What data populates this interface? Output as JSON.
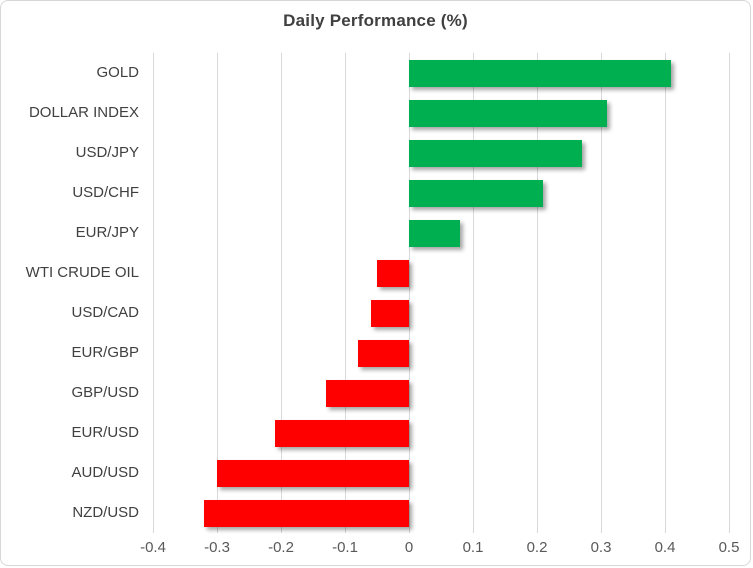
{
  "chart_data": {
    "type": "bar",
    "orientation": "horizontal",
    "title": "Daily Performance (%)",
    "categories": [
      "GOLD",
      "DOLLAR INDEX",
      "USD/JPY",
      "USD/CHF",
      "EUR/JPY",
      "WTI CRUDE OIL",
      "USD/CAD",
      "EUR/GBP",
      "GBP/USD",
      "EUR/USD",
      "AUD/USD",
      "NZD/USD"
    ],
    "values": [
      0.41,
      0.31,
      0.27,
      0.21,
      0.08,
      -0.05,
      -0.06,
      -0.08,
      -0.13,
      -0.21,
      -0.3,
      -0.32
    ],
    "xlim": [
      -0.4,
      0.5
    ],
    "xticks": [
      -0.4,
      -0.3,
      -0.2,
      -0.1,
      0,
      0.1,
      0.2,
      0.3,
      0.4,
      0.5
    ],
    "xtick_labels": [
      "-0.4",
      "-0.3",
      "-0.2",
      "-0.1",
      "0",
      "0.1",
      "0.2",
      "0.3",
      "0.4",
      "0.5"
    ],
    "grid": "vertical-on",
    "legend": "none",
    "colors": {
      "positive": "#00B050",
      "negative": "#FF0000",
      "gridline": "#d9d9d9",
      "title_text": "#404040",
      "category_text": "#404040",
      "tick_text": "#595959"
    }
  }
}
